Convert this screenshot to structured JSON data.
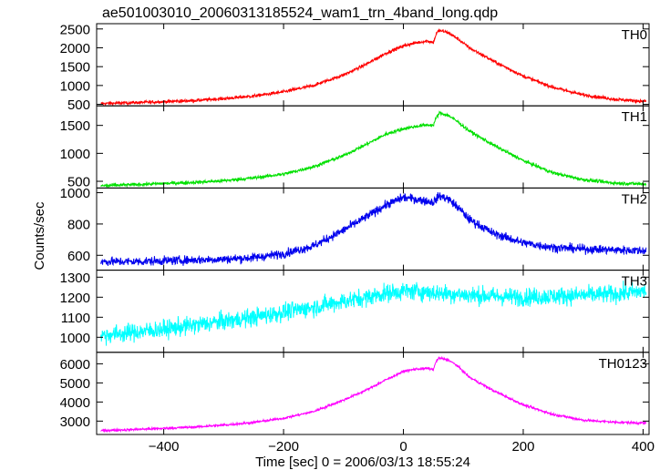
{
  "chart_data": {
    "type": "line",
    "title": "ae501003010_20060313185524_wam1_trn_4band_long.qdp",
    "xlabel": "Time [sec] 0 = 2006/03/13 18:55:24",
    "ylabel": "Counts/sec",
    "xlim": [
      -512,
      410
    ],
    "x_ticks": [
      -400,
      -200,
      0,
      200,
      400
    ],
    "x_tick_labels": [
      "−400",
      "−200",
      "0",
      "200",
      "400"
    ],
    "grid": false,
    "panels": [
      {
        "name": "TH0",
        "color": "#ff0000",
        "ylim": [
          460,
          2640
        ],
        "yticks": [
          500,
          1000,
          1500,
          2000,
          2500
        ],
        "noise": 30,
        "x": [
          -505,
          -450,
          -400,
          -350,
          -300,
          -250,
          -200,
          -150,
          -100,
          -60,
          -30,
          0,
          20,
          40,
          50,
          55,
          60,
          75,
          90,
          110,
          150,
          200,
          250,
          300,
          350,
          400
        ],
        "y": [
          520,
          545,
          570,
          600,
          650,
          720,
          830,
          1000,
          1280,
          1580,
          1850,
          2050,
          2130,
          2180,
          2140,
          2380,
          2460,
          2400,
          2250,
          2000,
          1650,
          1250,
          950,
          750,
          640,
          580
        ]
      },
      {
        "name": "TH1",
        "color": "#00e000",
        "ylim": [
          380,
          1850
        ],
        "yticks": [
          500,
          1000,
          1500
        ],
        "noise": 22,
        "x": [
          -505,
          -450,
          -400,
          -350,
          -300,
          -250,
          -200,
          -150,
          -100,
          -60,
          -30,
          0,
          20,
          40,
          50,
          55,
          60,
          75,
          90,
          110,
          150,
          200,
          250,
          300,
          350,
          400
        ],
        "y": [
          420,
          440,
          460,
          480,
          510,
          560,
          630,
          760,
          960,
          1170,
          1340,
          1440,
          1480,
          1510,
          1500,
          1640,
          1720,
          1680,
          1570,
          1400,
          1150,
          870,
          650,
          530,
          470,
          450
        ]
      },
      {
        "name": "TH2",
        "color": "#0000ee",
        "ylim": [
          505,
          1030
        ],
        "yticks": [
          600,
          800,
          1000
        ],
        "noise": 20,
        "x": [
          -505,
          -450,
          -400,
          -350,
          -300,
          -250,
          -200,
          -150,
          -100,
          -60,
          -30,
          0,
          20,
          40,
          50,
          55,
          60,
          75,
          90,
          110,
          150,
          200,
          250,
          300,
          350,
          400
        ],
        "y": [
          560,
          560,
          565,
          570,
          575,
          585,
          610,
          660,
          760,
          850,
          920,
          970,
          960,
          945,
          940,
          960,
          980,
          960,
          910,
          830,
          740,
          680,
          650,
          640,
          635,
          630
        ]
      },
      {
        "name": "TH3",
        "color": "#00ffff",
        "ylim": [
          925,
          1335
        ],
        "yticks": [
          1000,
          1100,
          1200,
          1300
        ],
        "noise": 32,
        "x": [
          -505,
          -450,
          -400,
          -350,
          -300,
          -250,
          -200,
          -150,
          -100,
          -60,
          -30,
          0,
          20,
          40,
          60,
          90,
          110,
          150,
          200,
          250,
          300,
          350,
          400
        ],
        "y": [
          1010,
          1025,
          1040,
          1060,
          1080,
          1100,
          1125,
          1150,
          1180,
          1200,
          1220,
          1230,
          1230,
          1225,
          1220,
          1215,
          1210,
          1205,
          1200,
          1205,
          1210,
          1215,
          1230
        ]
      },
      {
        "name": "TH0123",
        "color": "#ff00ff",
        "ylim": [
          2300,
          6600
        ],
        "yticks": [
          3000,
          4000,
          5000,
          6000
        ],
        "noise": 45,
        "x": [
          -505,
          -450,
          -400,
          -350,
          -300,
          -250,
          -200,
          -150,
          -100,
          -60,
          -30,
          0,
          20,
          40,
          50,
          55,
          60,
          75,
          90,
          110,
          150,
          200,
          250,
          300,
          350,
          400
        ],
        "y": [
          2500,
          2560,
          2620,
          2690,
          2790,
          2930,
          3150,
          3500,
          4100,
          4650,
          5150,
          5600,
          5720,
          5760,
          5700,
          6150,
          6300,
          6200,
          5900,
          5300,
          4600,
          3850,
          3350,
          3050,
          2950,
          2900
        ]
      }
    ]
  }
}
